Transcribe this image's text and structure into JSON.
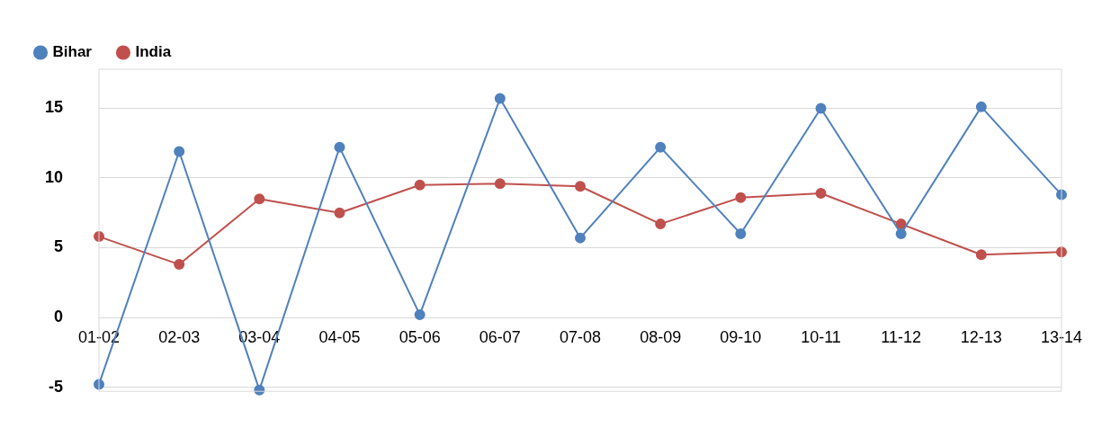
{
  "chart_data": {
    "type": "line",
    "categories": [
      "01-02",
      "02-03",
      "03-04",
      "04-05",
      "05-06",
      "06-07",
      "07-08",
      "08-09",
      "09-10",
      "10-11",
      "11-12",
      "12-13",
      "13-14"
    ],
    "series": [
      {
        "name": "Bihar",
        "color": "#4f81bd",
        "values": [
          -4.8,
          11.9,
          -5.2,
          12.2,
          0.2,
          15.7,
          5.7,
          12.2,
          6.0,
          15.0,
          6.0,
          15.1,
          8.8
        ]
      },
      {
        "name": "India",
        "color": "#c0504d",
        "values": [
          5.8,
          3.8,
          8.5,
          7.5,
          9.5,
          9.6,
          9.4,
          6.7,
          8.6,
          8.9,
          6.7,
          4.5,
          4.7
        ]
      }
    ],
    "ylim": [
      -5.3,
      17.8
    ],
    "yticks": [
      -5,
      0,
      5,
      10,
      15
    ],
    "grid": "y",
    "legend": "top left",
    "marker": "circle",
    "line_style": "solid"
  }
}
